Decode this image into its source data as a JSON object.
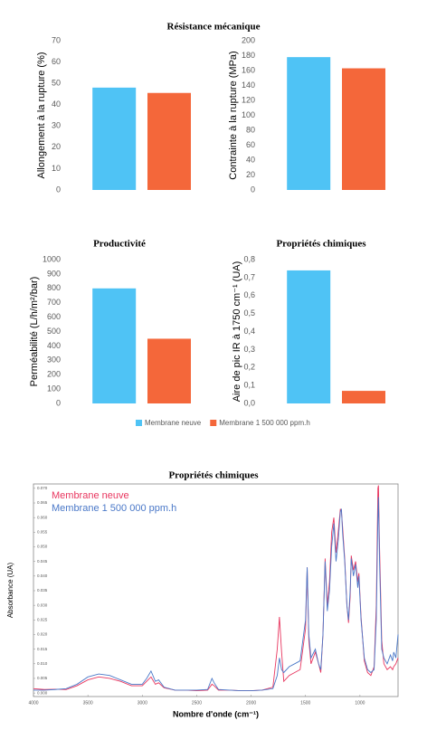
{
  "chart_data": [
    {
      "type": "bar",
      "title": "Résistance mécanique",
      "y_label": "Allongement à la rupture (%)",
      "series": [
        {
          "color": "#4fc3f5",
          "values": [
            48
          ]
        },
        {
          "color": "#f4673a",
          "values": [
            45.5
          ]
        }
      ],
      "ylim": [
        0,
        70
      ],
      "yticks": [
        0,
        10,
        20,
        30,
        40,
        50,
        60,
        70
      ]
    },
    {
      "type": "bar",
      "y_label": "Contrainte à la rupture (MPa)",
      "series": [
        {
          "color": "#4fc3f5",
          "values": [
            178
          ]
        },
        {
          "color": "#f4673a",
          "values": [
            163
          ]
        }
      ],
      "ylim": [
        0,
        200
      ],
      "yticks": [
        0,
        20,
        40,
        60,
        80,
        100,
        120,
        140,
        160,
        180,
        200
      ]
    },
    {
      "type": "bar",
      "title": "Productivité",
      "y_label": "Perméabilité (L/h/m²/bar)",
      "series": [
        {
          "name": "Membrane neuve",
          "color": "#4fc3f5",
          "values": [
            800
          ]
        },
        {
          "name": "Membrane 1 500 000 ppm.h",
          "color": "#f4673a",
          "values": [
            450
          ]
        }
      ],
      "ylim": [
        0,
        1000
      ],
      "yticks": [
        0,
        100,
        200,
        300,
        400,
        500,
        600,
        700,
        800,
        900,
        1000
      ],
      "legend": "bottom"
    },
    {
      "type": "bar",
      "title": "Propriétés chimiques",
      "y_label": "Aire de pic IR à 1750 cm⁻¹ (UA)",
      "series": [
        {
          "color": "#4fc3f5",
          "values": [
            0.74
          ]
        },
        {
          "color": "#f4673a",
          "values": [
            0.07
          ]
        }
      ],
      "ylim": [
        0,
        0.8
      ],
      "yticks": [
        {
          "value": 0,
          "label": "0,0"
        },
        {
          "value": 0.1,
          "label": "0,1"
        },
        {
          "value": 0.2,
          "label": "0,2"
        },
        {
          "value": 0.3,
          "label": "0,3"
        },
        {
          "value": 0.4,
          "label": "0,4"
        },
        {
          "value": 0.5,
          "label": "0,5"
        },
        {
          "value": 0.6,
          "label": "0,6"
        },
        {
          "value": 0.7,
          "label": "0,7"
        },
        {
          "value": 0.8,
          "label": "0,8"
        }
      ]
    },
    {
      "type": "line",
      "title": "Propriétés chimiques",
      "x_label": "Nombre d'onde (cm⁻¹)",
      "y_label": "Absorbance (UA)",
      "x": [
        4000,
        3900,
        3800,
        3700,
        3600,
        3500,
        3400,
        3300,
        3200,
        3100,
        3000,
        2960,
        2920,
        2880,
        2850,
        2800,
        2700,
        2600,
        2500,
        2400,
        2360,
        2340,
        2300,
        2200,
        2100,
        2000,
        1900,
        1800,
        1760,
        1740,
        1720,
        1700,
        1650,
        1600,
        1550,
        1500,
        1485,
        1470,
        1450,
        1410,
        1380,
        1360,
        1340,
        1320,
        1300,
        1280,
        1260,
        1240,
        1220,
        1200,
        1180,
        1170,
        1160,
        1140,
        1120,
        1105,
        1090,
        1080,
        1060,
        1040,
        1020,
        1010,
        990,
        960,
        930,
        900,
        870,
        850,
        835,
        830,
        820,
        800,
        780,
        750,
        720,
        700,
        690,
        670,
        650
      ],
      "series": [
        {
          "name": "Membrane neuve",
          "color": "#e8365f",
          "values": [
            0.0015,
            0.0012,
            0.0013,
            0.0012,
            0.0025,
            0.0045,
            0.0055,
            0.005,
            0.004,
            0.0025,
            0.0025,
            0.004,
            0.0055,
            0.003,
            0.0035,
            0.0018,
            0.001,
            0.001,
            0.0008,
            0.001,
            0.003,
            0.0025,
            0.001,
            0.001,
            0.0008,
            0.0008,
            0.001,
            0.002,
            0.015,
            0.026,
            0.014,
            0.004,
            0.006,
            0.007,
            0.008,
            0.022,
            0.043,
            0.018,
            0.01,
            0.014,
            0.01,
            0.007,
            0.02,
            0.046,
            0.03,
            0.038,
            0.055,
            0.06,
            0.048,
            0.055,
            0.063,
            0.062,
            0.057,
            0.046,
            0.03,
            0.024,
            0.033,
            0.047,
            0.042,
            0.045,
            0.038,
            0.041,
            0.026,
            0.011,
            0.007,
            0.006,
            0.009,
            0.03,
            0.07,
            0.071,
            0.05,
            0.018,
            0.01,
            0.008,
            0.009,
            0.008,
            0.009,
            0.01,
            0.012
          ]
        },
        {
          "name": "Membrane 1 500 000 ppm.h",
          "color": "#4a78c8",
          "values": [
            0.001,
            0.001,
            0.0012,
            0.0015,
            0.003,
            0.0055,
            0.0065,
            0.006,
            0.0045,
            0.003,
            0.003,
            0.005,
            0.0075,
            0.004,
            0.0045,
            0.002,
            0.001,
            0.001,
            0.001,
            0.0012,
            0.005,
            0.0035,
            0.0012,
            0.001,
            0.0008,
            0.0008,
            0.001,
            0.0015,
            0.006,
            0.012,
            0.008,
            0.007,
            0.009,
            0.01,
            0.011,
            0.025,
            0.043,
            0.02,
            0.012,
            0.015,
            0.01,
            0.008,
            0.02,
            0.045,
            0.028,
            0.035,
            0.05,
            0.058,
            0.045,
            0.052,
            0.062,
            0.063,
            0.055,
            0.045,
            0.03,
            0.025,
            0.035,
            0.046,
            0.04,
            0.044,
            0.036,
            0.04,
            0.025,
            0.012,
            0.008,
            0.007,
            0.008,
            0.025,
            0.06,
            0.067,
            0.045,
            0.015,
            0.012,
            0.01,
            0.013,
            0.011,
            0.014,
            0.012,
            0.02
          ]
        }
      ],
      "xlim": [
        4000,
        650
      ],
      "xticks": [
        4000,
        3500,
        3000,
        2500,
        2000,
        1500,
        1000
      ],
      "ylim": [
        -0.0012,
        0.0715
      ],
      "yticks": [
        {
          "value": 0,
          "label": "0.000"
        },
        {
          "value": 0.005,
          "label": "0.005"
        },
        {
          "value": 0.01,
          "label": "0.010"
        },
        {
          "value": 0.015,
          "label": "0.015"
        },
        {
          "value": 0.02,
          "label": "0.020"
        },
        {
          "value": 0.025,
          "label": "0.025"
        },
        {
          "value": 0.03,
          "label": "0.030"
        },
        {
          "value": 0.035,
          "label": "0.035"
        },
        {
          "value": 0.04,
          "label": "0.040"
        },
        {
          "value": 0.045,
          "label": "0.045"
        },
        {
          "value": 0.05,
          "label": "0.050"
        },
        {
          "value": 0.055,
          "label": "0.055"
        },
        {
          "value": 0.06,
          "label": "0.060"
        },
        {
          "value": 0.065,
          "label": "0.065"
        },
        {
          "value": 0.07,
          "label": "0.070"
        }
      ],
      "legend": "upper left"
    }
  ]
}
